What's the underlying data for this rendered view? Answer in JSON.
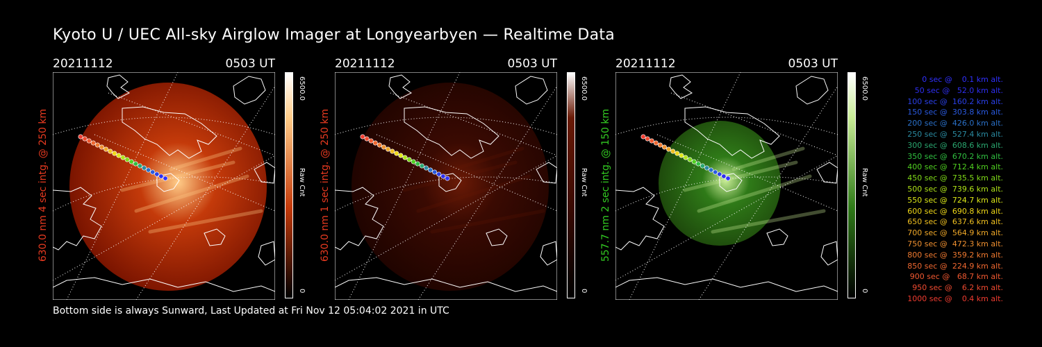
{
  "title": "Kyoto U / UEC All-sky Airglow Imager at Longyearbyen — Realtime Data",
  "footer": "Bottom side is always Sunward, Last Updated at Fri Nov 12 05:04:02 2021 in UTC",
  "panels": [
    {
      "date": "20211112",
      "time": "0503 UT",
      "ylabel": "630.0 nm 4 sec intg. @ 250 km",
      "label_color": "#e83a20",
      "cbar_max": "6500.0",
      "cbar_min": "0",
      "cbar_unit": "Raw Cnt",
      "image_tone": "red-bright",
      "colors": {
        "dark": "#7a1400",
        "mid": "#c43a0a",
        "bright": "#ffcc88"
      }
    },
    {
      "date": "20211112",
      "time": "0503 UT",
      "ylabel": "630.0 nm 1 sec intg. @ 250 km",
      "label_color": "#e83a20",
      "cbar_max": "6500.0",
      "cbar_min": "0",
      "cbar_unit": "Raw Cnt",
      "image_tone": "red-dim",
      "colors": {
        "dark": "#200400",
        "mid": "#3a0a02",
        "bright": "#6a1a06"
      }
    },
    {
      "date": "20211112",
      "time": "0503 UT",
      "ylabel": "557.7 nm 2 sec intg. @ 150 km",
      "label_color": "#33cc22",
      "cbar_max": "6500.0",
      "cbar_min": "0",
      "cbar_unit": "Raw Cnt",
      "image_tone": "green",
      "colors": {
        "dark": "#1e4a0c",
        "mid": "#2f7a18",
        "bright": "#c8ec96"
      }
    }
  ],
  "legend": [
    {
      "text": "   0 sec @    0.1 km alt.",
      "color": "#3030ff"
    },
    {
      "text": "  50 sec @   52.0 km alt.",
      "color": "#2e2ef0"
    },
    {
      "text": " 100 sec @  160.2 km alt.",
      "color": "#2a40e8"
    },
    {
      "text": " 150 sec @  303.8 km alt.",
      "color": "#2a5ae0"
    },
    {
      "text": " 200 sec @  426.0 km alt.",
      "color": "#2a70c8"
    },
    {
      "text": " 250 sec @  527.4 km alt.",
      "color": "#2a8aa0"
    },
    {
      "text": " 300 sec @  608.6 km alt.",
      "color": "#2aa870"
    },
    {
      "text": " 350 sec @  670.2 km alt.",
      "color": "#30c040"
    },
    {
      "text": " 400 sec @  712.4 km alt.",
      "color": "#50d020"
    },
    {
      "text": " 450 sec @  735.5 km alt.",
      "color": "#80dc18"
    },
    {
      "text": " 500 sec @  739.6 km alt.",
      "color": "#b0e418"
    },
    {
      "text": " 550 sec @  724.7 km alt.",
      "color": "#dde818"
    },
    {
      "text": " 600 sec @  690.8 km alt.",
      "color": "#f0d818"
    },
    {
      "text": " 650 sec @  637.6 km alt.",
      "color": "#f0c020"
    },
    {
      "text": " 700 sec @  564.9 km alt.",
      "color": "#f0a828"
    },
    {
      "text": " 750 sec @  472.3 km alt.",
      "color": "#f09030"
    },
    {
      "text": " 800 sec @  359.2 km alt.",
      "color": "#f07a30"
    },
    {
      "text": " 850 sec @  224.9 km alt.",
      "color": "#f06830"
    },
    {
      "text": " 900 sec @   68.7 km alt.",
      "color": "#f05830"
    },
    {
      "text": " 950 sec @    6.2 km alt.",
      "color": "#f04a30"
    },
    {
      "text": "1000 sec @    0.4 km alt.",
      "color": "#f03c30"
    }
  ]
}
